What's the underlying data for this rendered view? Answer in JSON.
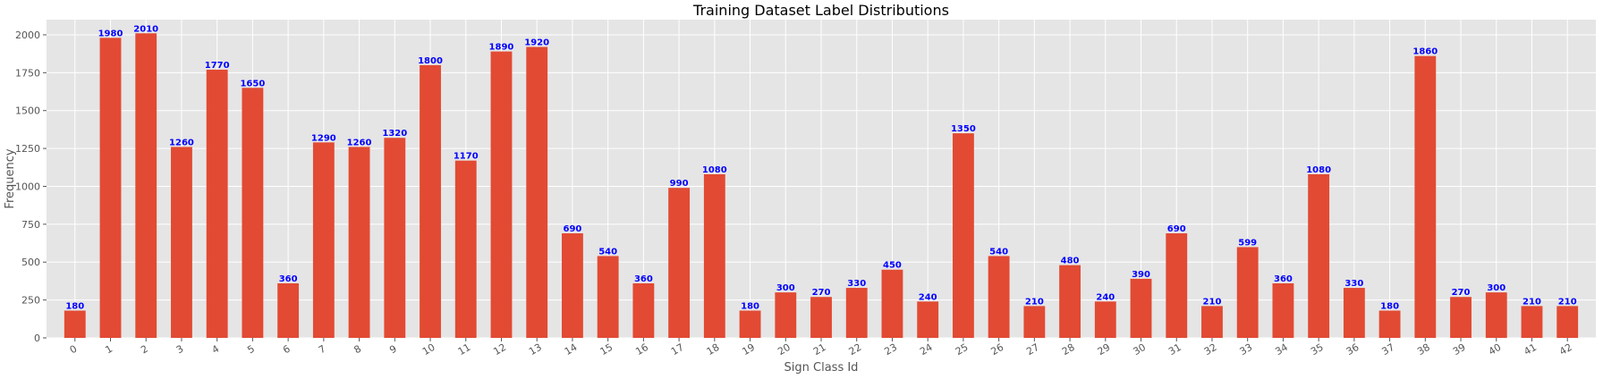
{
  "chart_data": {
    "type": "bar",
    "title": "Training Dataset Label Distributions",
    "xlabel": "Sign Class Id",
    "ylabel": "Frequency",
    "ylim": [
      0,
      2100
    ],
    "yticks": [
      0,
      250,
      500,
      750,
      1000,
      1250,
      1500,
      1750,
      2000
    ],
    "categories": [
      "0",
      "1",
      "2",
      "3",
      "4",
      "5",
      "6",
      "7",
      "8",
      "9",
      "10",
      "11",
      "12",
      "13",
      "14",
      "15",
      "16",
      "17",
      "18",
      "19",
      "20",
      "21",
      "22",
      "23",
      "24",
      "25",
      "26",
      "27",
      "28",
      "29",
      "30",
      "31",
      "32",
      "33",
      "34",
      "35",
      "36",
      "37",
      "38",
      "39",
      "40",
      "41",
      "42"
    ],
    "values": [
      180,
      1980,
      2010,
      1260,
      1770,
      1650,
      360,
      1290,
      1260,
      1320,
      1800,
      1170,
      1890,
      1920,
      690,
      540,
      360,
      990,
      1080,
      180,
      300,
      270,
      330,
      450,
      240,
      1350,
      540,
      210,
      480,
      240,
      390,
      690,
      210,
      599,
      360,
      1080,
      330,
      180,
      1860,
      270,
      300,
      210,
      210
    ],
    "grid": true,
    "style": "ggplot",
    "colors": {
      "bar": "#E24A33",
      "label": "#0000ff",
      "background": "#E5E5E5",
      "grid": "#ffffff"
    }
  }
}
